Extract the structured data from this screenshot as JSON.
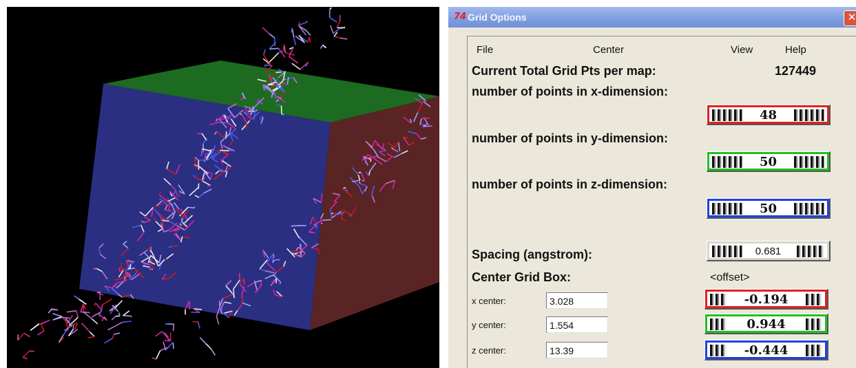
{
  "window": {
    "title": "Grid Options",
    "app_icon": "74",
    "close_label": "✕"
  },
  "menu": {
    "file": "File",
    "center": "Center",
    "view": "View",
    "help": "Help"
  },
  "total": {
    "label": "Current Total Grid Pts per map:",
    "value": "127449"
  },
  "points": {
    "x": {
      "label": "number of points in x-dimension:",
      "value": "48",
      "color": "#e02020"
    },
    "y": {
      "label": "number of points in y-dimension:",
      "value": "50",
      "color": "#20c020"
    },
    "z": {
      "label": "number of points in z-dimension:",
      "value": "50",
      "color": "#2040e0"
    }
  },
  "spacing": {
    "label": "Spacing (angstrom):",
    "value": "0.681"
  },
  "center_box": {
    "label": "Center Grid Box:",
    "offset_label": "<offset>"
  },
  "centers": {
    "x": {
      "label": "x center:",
      "value": "3.028",
      "offset": "-0.194",
      "color": "#e02020"
    },
    "y": {
      "label": "y center:",
      "value": "1.554",
      "offset": "0.944",
      "color": "#20c020"
    },
    "z": {
      "label": "z center:",
      "value": "13.39",
      "offset": "-0.444",
      "color": "#2040e0"
    }
  },
  "viewer": {
    "box_front_color": "#2b2f82",
    "box_top_color": "#1d6b20",
    "box_side_color": "#5a2424",
    "background_color": "#000000"
  }
}
